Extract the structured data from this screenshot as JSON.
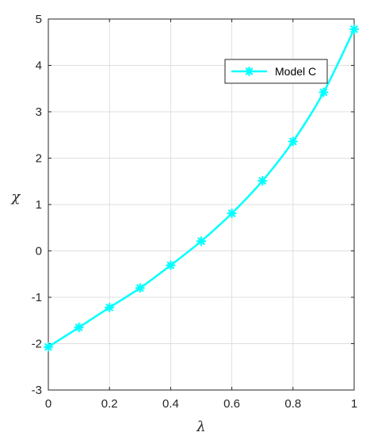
{
  "chart_data": {
    "type": "line",
    "title": "",
    "xlabel": "λ",
    "ylabel": "χ",
    "xlim": [
      0,
      1
    ],
    "ylim": [
      -3,
      5
    ],
    "xticks": [
      0,
      0.2,
      0.4,
      0.6,
      0.8,
      1
    ],
    "xtick_labels": [
      "0",
      "0.2",
      "0.4",
      "0.6",
      "0.8",
      "1"
    ],
    "yticks": [
      -3,
      -2,
      -1,
      0,
      1,
      2,
      3,
      4,
      5
    ],
    "ytick_labels": [
      "-3",
      "-2",
      "-1",
      "0",
      "1",
      "2",
      "3",
      "4",
      "5"
    ],
    "grid": true,
    "legend_position": "top-right",
    "series": [
      {
        "name": "Model C",
        "color": "#00FFFF",
        "marker": "asterisk",
        "x": [
          0,
          0.1,
          0.2,
          0.3,
          0.4,
          0.5,
          0.6,
          0.7,
          0.8,
          0.9,
          1.0
        ],
        "y": [
          -2.07,
          -1.65,
          -1.22,
          -0.8,
          -0.31,
          0.21,
          0.81,
          1.51,
          2.36,
          3.42,
          4.78
        ]
      }
    ]
  }
}
